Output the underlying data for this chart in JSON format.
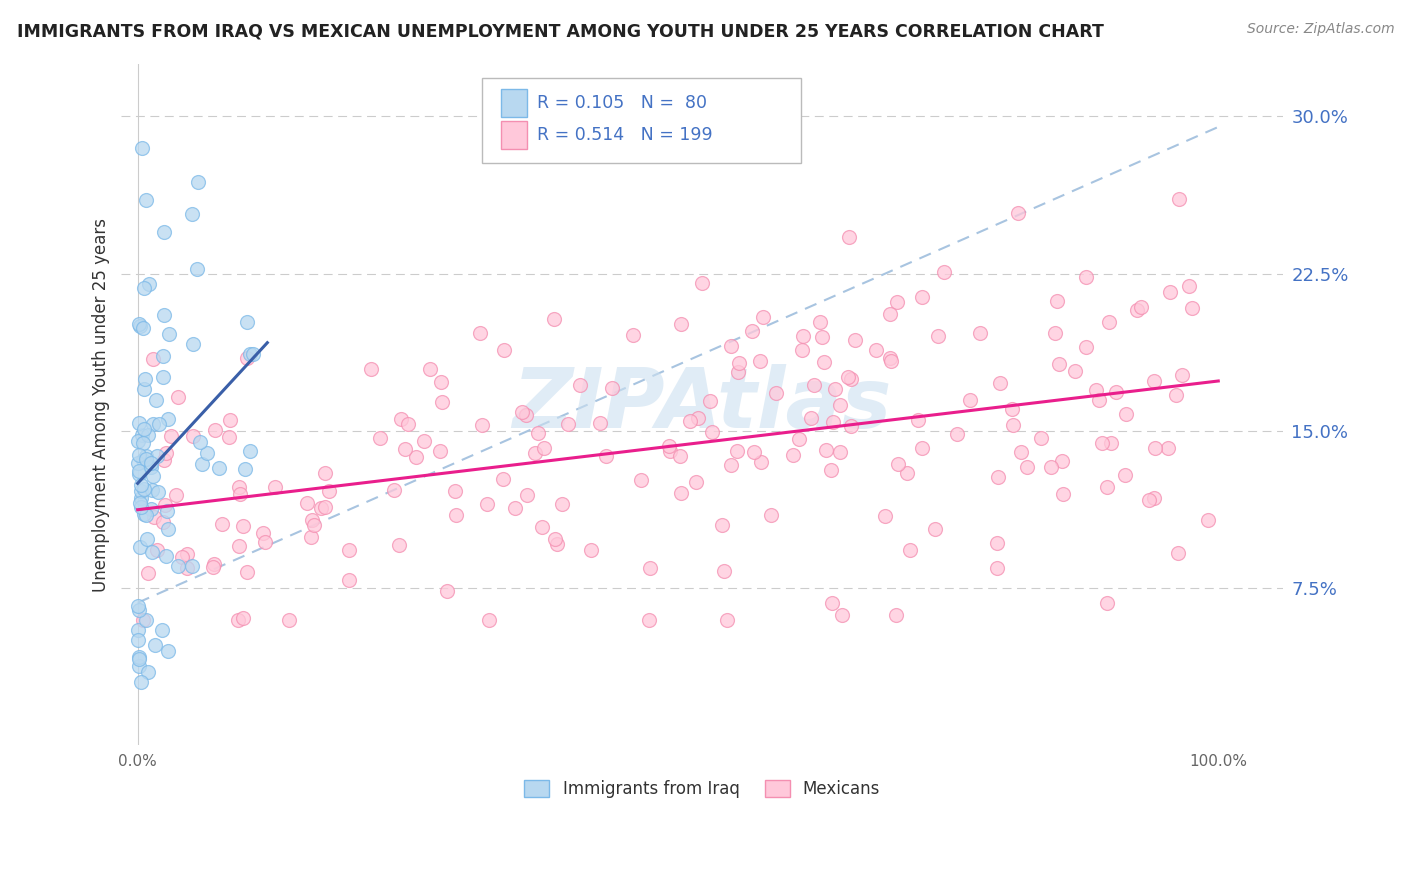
{
  "title": "IMMIGRANTS FROM IRAQ VS MEXICAN UNEMPLOYMENT AMONG YOUTH UNDER 25 YEARS CORRELATION CHART",
  "source": "Source: ZipAtlas.com",
  "ylabel": "Unemployment Among Youth under 25 years",
  "legend_r1": "R = 0.105",
  "legend_n1": "N =  80",
  "legend_r2": "R = 0.514",
  "legend_n2": "N = 199",
  "legend_label1": "Immigrants from Iraq",
  "legend_label2": "Mexicans",
  "blue_edge": "#7cb9e8",
  "blue_fill": "#b8d8f0",
  "pink_edge": "#f48fb1",
  "pink_fill": "#ffc8da",
  "line_blue": "#3a5fa8",
  "line_pink": "#e91e8c",
  "dash_color": "#a8c4e0",
  "watermark": "ZIPAtlas",
  "watermark_color": "#cce0f0",
  "ytick_color": "#4472c4",
  "title_color": "#222222",
  "source_color": "#888888",
  "label_color": "#333333",
  "grid_color": "#cccccc"
}
